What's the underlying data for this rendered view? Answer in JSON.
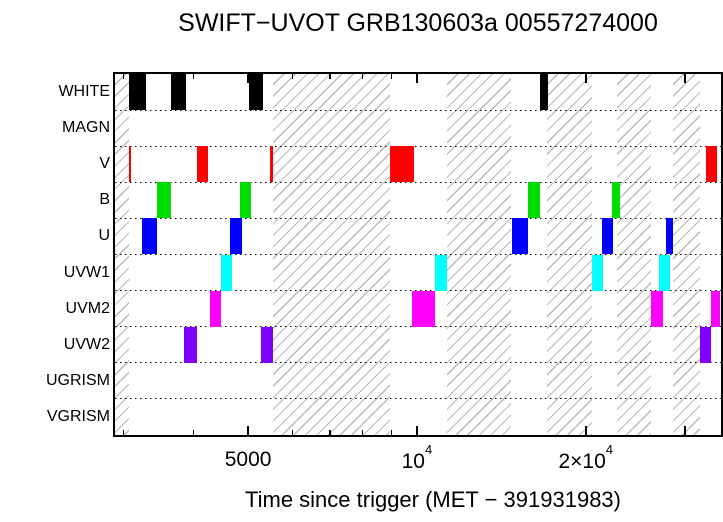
{
  "chart_data": {
    "type": "gantt",
    "title": "SWIFT−UVOT GRB130603a 00557274000",
    "xlabel": "Time since trigger (MET − 391931983)",
    "x_scale": "log",
    "x_range": [
      2895,
      34850
    ],
    "rows": [
      "WHITE",
      "MAGN",
      "V",
      "B",
      "U",
      "UVW1",
      "UVM2",
      "UVW2",
      "UGRISM",
      "VGRISM"
    ],
    "series": [
      {
        "name": "WHITE",
        "color": "#000000",
        "intervals": [
          [
            3070,
            3290
          ],
          [
            3650,
            3880
          ],
          [
            5020,
            5320
          ],
          [
            16600,
            17100
          ]
        ]
      },
      {
        "name": "MAGN",
        "color": "#000000",
        "intervals": []
      },
      {
        "name": "V",
        "color": "#ff0000",
        "intervals": [
          [
            3060,
            3095
          ],
          [
            4050,
            4240
          ],
          [
            5480,
            5540
          ],
          [
            8970,
            9880
          ],
          [
            32800,
            34250
          ]
        ]
      },
      {
        "name": "B",
        "color": "#00dd00",
        "intervals": [
          [
            3440,
            3650
          ],
          [
            4830,
            5070
          ],
          [
            15800,
            16570
          ],
          [
            22250,
            23000
          ]
        ]
      },
      {
        "name": "U",
        "color": "#0000ff",
        "intervals": [
          [
            3230,
            3440
          ],
          [
            4640,
            4880
          ],
          [
            14770,
            15780
          ],
          [
            21350,
            22400
          ],
          [
            27800,
            28650
          ]
        ]
      },
      {
        "name": "UVW1",
        "color": "#00ffff",
        "intervals": [
          [
            4470,
            4680
          ],
          [
            10770,
            11310
          ],
          [
            20480,
            21500
          ],
          [
            27000,
            28300
          ]
        ]
      },
      {
        "name": "UVM2",
        "color": "#ff00ff",
        "intervals": [
          [
            4280,
            4470
          ],
          [
            9820,
            10770
          ],
          [
            26100,
            27430
          ],
          [
            33450,
            34770
          ]
        ]
      },
      {
        "name": "UVW2",
        "color": "#8000ff",
        "intervals": [
          [
            3840,
            4060
          ],
          [
            5280,
            5540
          ],
          [
            32000,
            33440
          ]
        ]
      },
      {
        "name": "UGRISM",
        "color": "#000000",
        "intervals": []
      },
      {
        "name": "VGRISM",
        "color": "#000000",
        "intervals": []
      }
    ],
    "gap_hatch_bands": [
      [
        2895,
        3060
      ],
      [
        5540,
        8950
      ],
      [
        11310,
        14740
      ],
      [
        17090,
        20480
      ],
      [
        22760,
        26100
      ],
      [
        28650,
        32000
      ]
    ],
    "minor_ticks": [
      3000,
      4000,
      6000,
      7000,
      8000,
      9000
    ],
    "major_ticks": [
      5000,
      10000,
      20000,
      30000
    ],
    "tick_labels": [
      {
        "value": 5000,
        "base": "5000",
        "sup": ""
      },
      {
        "value": 10000,
        "base": "10",
        "sup": "4"
      },
      {
        "value": 20000,
        "base": "2×10",
        "sup": "4"
      }
    ],
    "grid": "dotted-row-separators",
    "legend": "none",
    "hatch_color": "#b9b9b9",
    "axis_color": "#000000",
    "background": "#ffffff"
  }
}
